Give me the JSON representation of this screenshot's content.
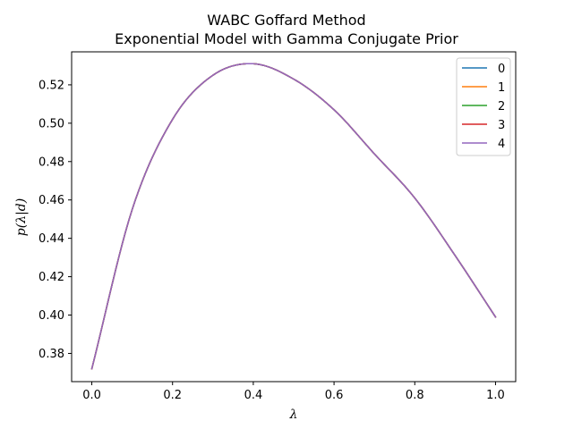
{
  "chart_data": {
    "type": "line",
    "title": "WABC Goffard Method",
    "subtitle": "Exponential Model with Gamma Conjugate Prior",
    "xlabel": "λ",
    "ylabel": "p(λ|d)",
    "xlim": [
      -0.05,
      1.05
    ],
    "ylim": [
      0.3653,
      0.5372
    ],
    "x_ticks": [
      0.0,
      0.2,
      0.4,
      0.6,
      0.8,
      1.0
    ],
    "x_tick_labels": [
      "0.0",
      "0.2",
      "0.4",
      "0.6",
      "0.8",
      "1.0"
    ],
    "y_ticks": [
      0.38,
      0.4,
      0.42,
      0.44,
      0.46,
      0.48,
      0.5,
      0.52
    ],
    "y_tick_labels": [
      "0.38",
      "0.40",
      "0.42",
      "0.44",
      "0.46",
      "0.48",
      "0.50",
      "0.52"
    ],
    "grid": false,
    "legend_position": "top-right",
    "x": [
      0.0,
      0.1,
      0.2,
      0.3,
      0.4,
      0.5,
      0.6,
      0.7,
      0.8,
      0.9,
      1.0
    ],
    "series": [
      {
        "name": "0",
        "color": "#1f77b4",
        "values": [
          0.372,
          0.455,
          0.502,
          0.525,
          0.531,
          0.523,
          0.507,
          0.484,
          0.461,
          0.431,
          0.399
        ]
      },
      {
        "name": "1",
        "color": "#ff7f0e",
        "values": [
          0.372,
          0.455,
          0.502,
          0.525,
          0.531,
          0.523,
          0.507,
          0.484,
          0.461,
          0.431,
          0.399
        ]
      },
      {
        "name": "2",
        "color": "#2ca02c",
        "values": [
          0.372,
          0.455,
          0.502,
          0.525,
          0.531,
          0.523,
          0.507,
          0.484,
          0.461,
          0.431,
          0.399
        ]
      },
      {
        "name": "3",
        "color": "#d62728",
        "values": [
          0.372,
          0.455,
          0.502,
          0.525,
          0.531,
          0.523,
          0.507,
          0.484,
          0.461,
          0.431,
          0.399
        ]
      },
      {
        "name": "4",
        "color": "#9467bd",
        "values": [
          0.372,
          0.455,
          0.502,
          0.525,
          0.531,
          0.523,
          0.507,
          0.484,
          0.461,
          0.431,
          0.399
        ]
      }
    ]
  }
}
